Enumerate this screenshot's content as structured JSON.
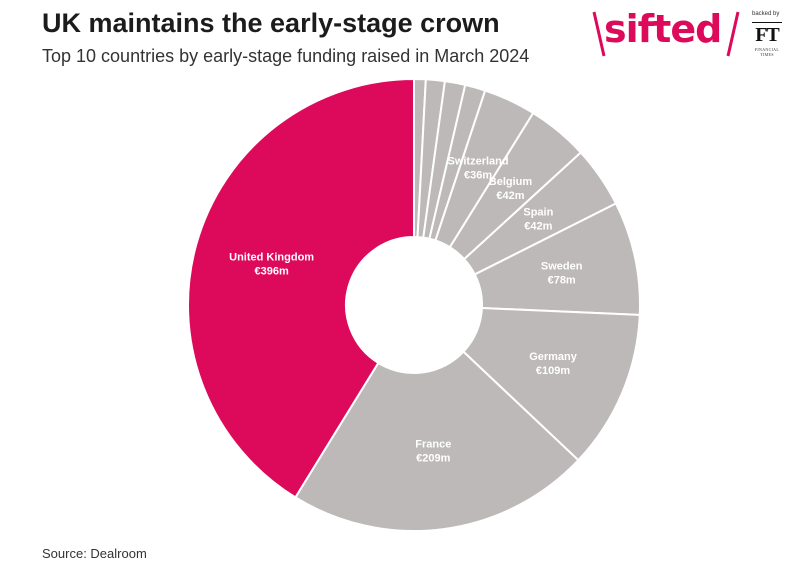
{
  "title": "UK maintains the early-stage crown",
  "subtitle": "Top 10 countries by early-stage funding raised in March 2024",
  "source": "Source: Dealroom",
  "brand": {
    "name": "sifted",
    "backed_by": "backed by",
    "ft_letters": "FT",
    "ft_subtext": "FINANCIAL TIMES"
  },
  "colors": {
    "highlight": "#dd0a5b",
    "other": "#bdb9b8",
    "border": "#ffffff"
  },
  "chart_data": {
    "type": "pie",
    "variant": "donut",
    "categories": [
      "",
      "",
      "",
      "",
      "Switzerland",
      "Belgium",
      "Spain",
      "Sweden",
      "Germany",
      "France",
      "United Kingdom"
    ],
    "values": [
      8,
      13,
      14,
      14,
      36,
      42,
      42,
      78,
      109,
      209,
      396
    ],
    "value_labels": [
      "",
      "",
      "",
      "",
      "€36m",
      "€42m",
      "€42m",
      "€78m",
      "€109m",
      "€209m",
      "€396m"
    ],
    "highlight": "United Kingdom",
    "order": "clockwise from top"
  }
}
